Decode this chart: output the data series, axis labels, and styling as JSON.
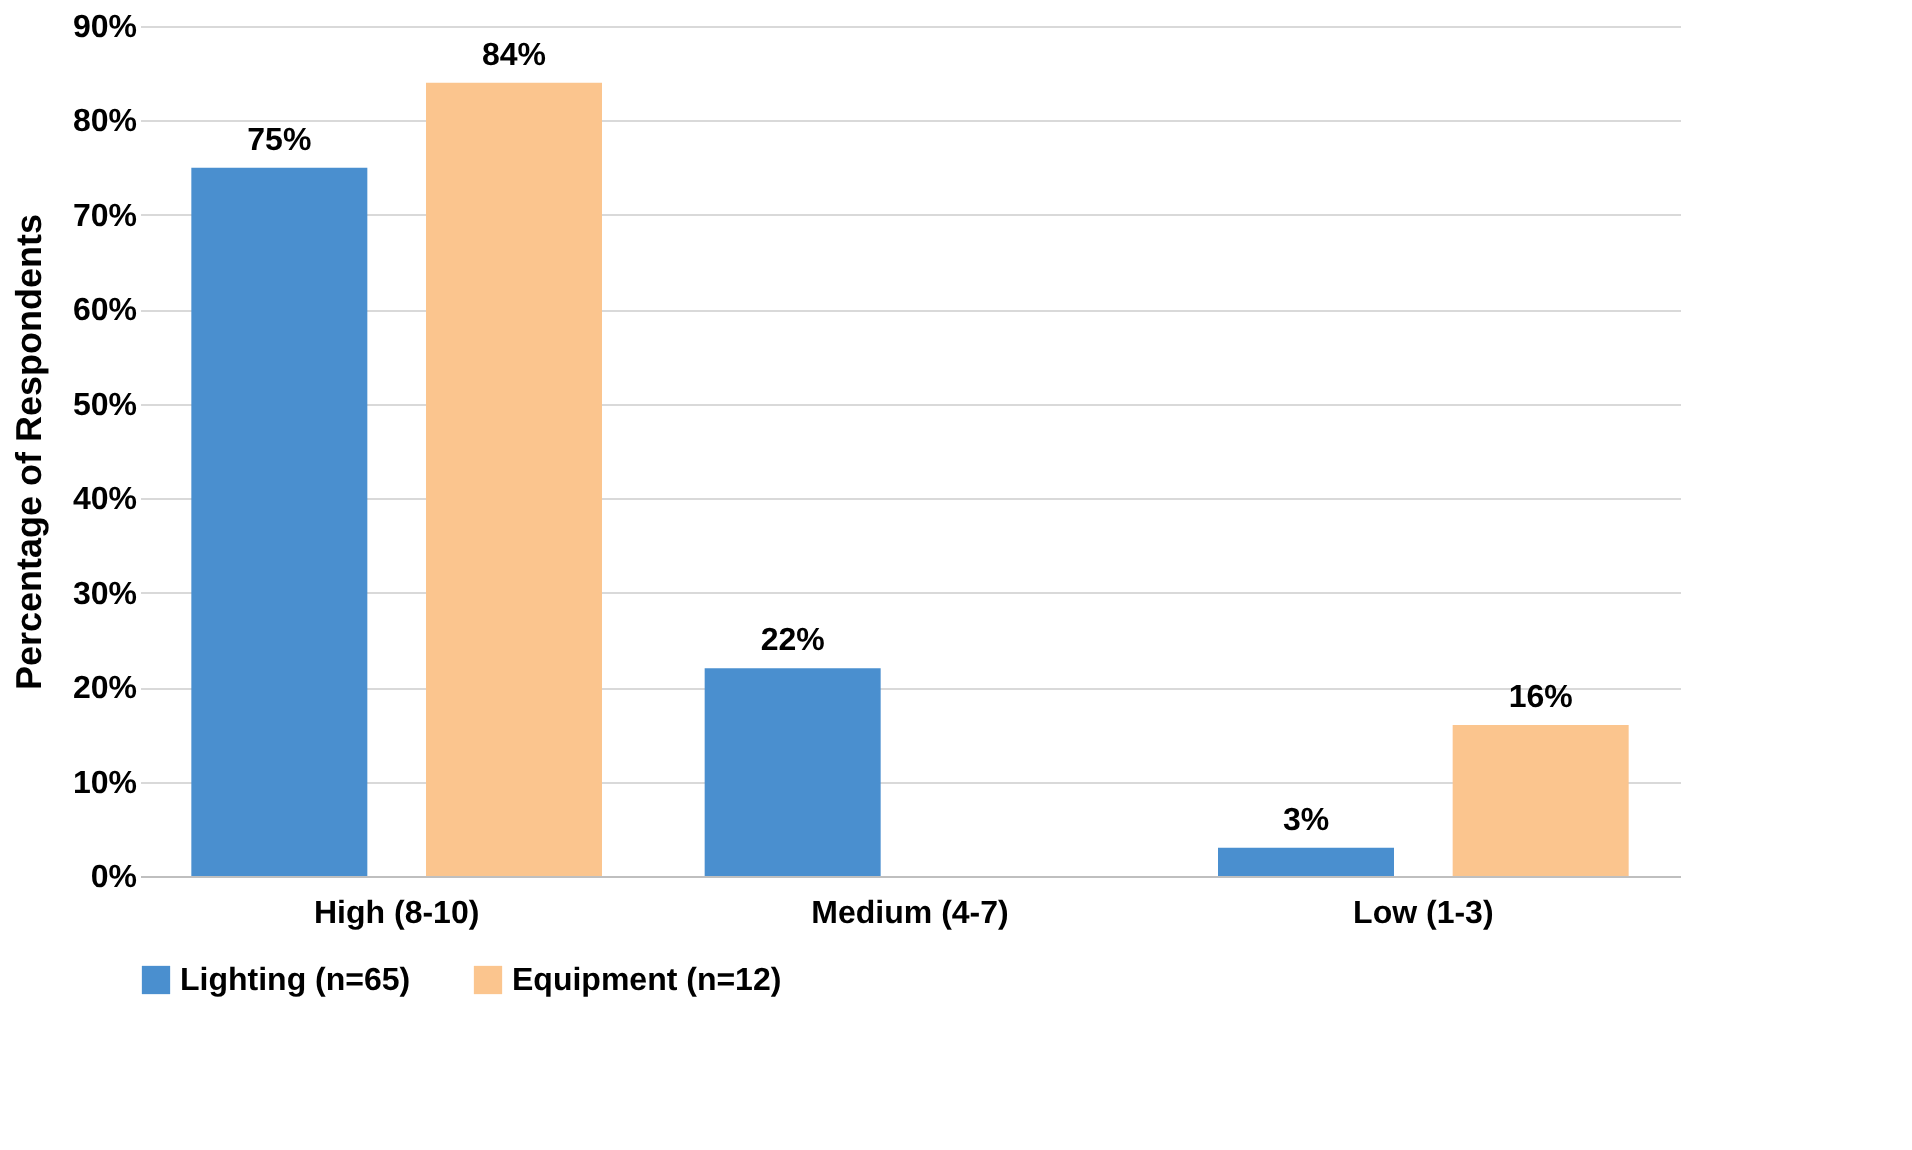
{
  "chart_data": {
    "type": "bar",
    "ylabel": "Percentage of Respondents",
    "categories": [
      "High (8-10)",
      "Medium (4-7)",
      "Low (1-3)"
    ],
    "series": [
      {
        "name": "Lighting (n=65)",
        "color": "#4a8fcf",
        "values": [
          75,
          22,
          3
        ],
        "value_labels": [
          "75%",
          "22%",
          "3%"
        ]
      },
      {
        "name": "Equipment (n=12)",
        "color": "#fbc58e",
        "values": [
          84,
          null,
          16
        ],
        "value_labels": [
          "84%",
          null,
          "16%"
        ]
      }
    ],
    "ylim": [
      0,
      90
    ],
    "yticks": [
      {
        "value": 0,
        "label": "0%"
      },
      {
        "value": 10,
        "label": "10%"
      },
      {
        "value": 20,
        "label": "20%"
      },
      {
        "value": 30,
        "label": "30%"
      },
      {
        "value": 40,
        "label": "40%"
      },
      {
        "value": 50,
        "label": "50%"
      },
      {
        "value": 60,
        "label": "60%"
      },
      {
        "value": 70,
        "label": "70%"
      },
      {
        "value": 80,
        "label": "80%"
      },
      {
        "value": 90,
        "label": "90%"
      }
    ],
    "grid": "y",
    "legend": "bottom"
  }
}
